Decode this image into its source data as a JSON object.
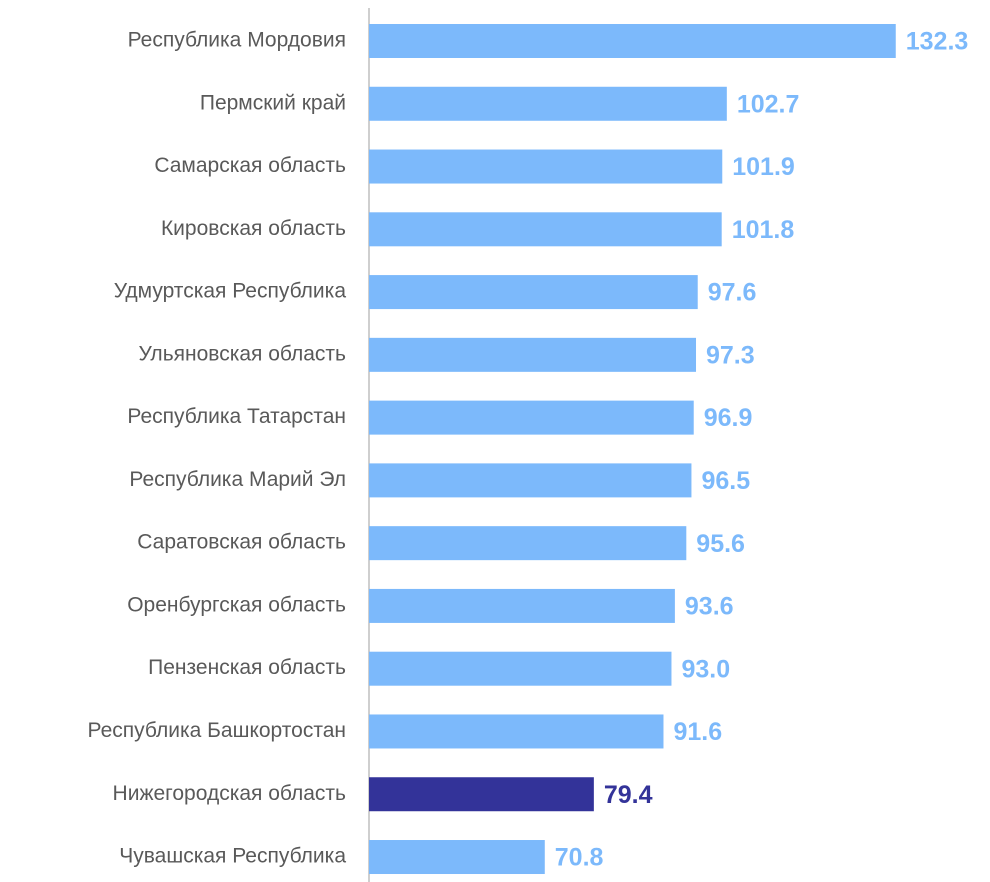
{
  "chart_data": {
    "type": "bar",
    "orientation": "horizontal",
    "categories": [
      "Республика Мордовия",
      "Пермский край",
      "Самарская область",
      "Кировская область",
      "Удмуртская Республика",
      "Ульяновская область",
      "Республика Татарстан",
      "Республика Марий Эл",
      "Саратовская область",
      "Оренбургская область",
      "Пензенская область",
      "Республика Башкортостан",
      "Нижегородская область",
      "Чувашская Республика"
    ],
    "values": [
      132.3,
      102.7,
      101.9,
      101.8,
      97.6,
      97.3,
      96.9,
      96.5,
      95.6,
      93.6,
      93.0,
      91.6,
      79.4,
      70.8
    ],
    "value_labels": [
      "132.3",
      "102.7",
      "101.9",
      "101.8",
      "97.6",
      "97.3",
      "96.9",
      "96.5",
      "95.6",
      "93.6",
      "93.0",
      "91.6",
      "79.4",
      "70.8"
    ],
    "colors": [
      "#7cb9fb",
      "#7cb9fb",
      "#7cb9fb",
      "#7cb9fb",
      "#7cb9fb",
      "#7cb9fb",
      "#7cb9fb",
      "#7cb9fb",
      "#7cb9fb",
      "#7cb9fb",
      "#7cb9fb",
      "#7cb9fb",
      "#333399",
      "#7cb9fb"
    ],
    "xlim": [
      40,
      140
    ]
  }
}
